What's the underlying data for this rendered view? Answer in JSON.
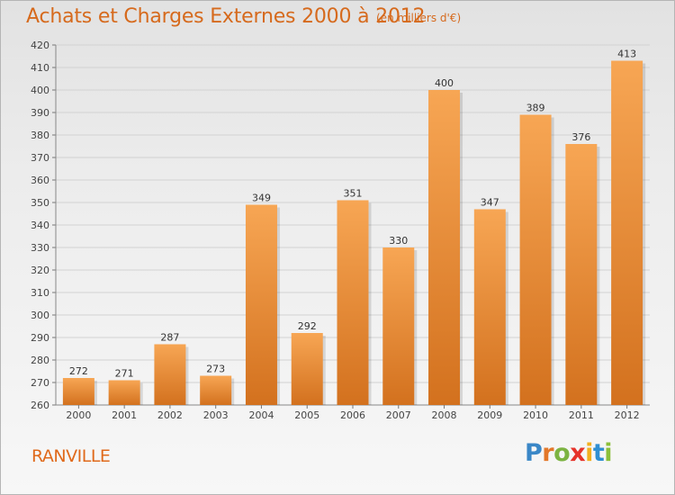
{
  "header": {
    "title": "Achats et Charges Externes 2000 à 2012",
    "subtitle": "(en milliers d'€)"
  },
  "footer": {
    "location": "RANVILLE",
    "logo_text": "Proxiti"
  },
  "colors": {
    "accent": "#d66a1d",
    "bar_top": "#f7a654",
    "bar_bottom": "#d3711e"
  },
  "chart_data": {
    "type": "bar",
    "categories": [
      "2000",
      "2001",
      "2002",
      "2003",
      "2004",
      "2005",
      "2006",
      "2007",
      "2008",
      "2009",
      "2010",
      "2011",
      "2012"
    ],
    "values": [
      272,
      271,
      287,
      273,
      349,
      292,
      351,
      330,
      400,
      347,
      389,
      376,
      413
    ],
    "ylim": [
      260,
      420
    ],
    "yticks": [
      260,
      270,
      280,
      290,
      300,
      310,
      320,
      330,
      340,
      350,
      360,
      370,
      380,
      390,
      400,
      410,
      420
    ],
    "grid": true
  }
}
